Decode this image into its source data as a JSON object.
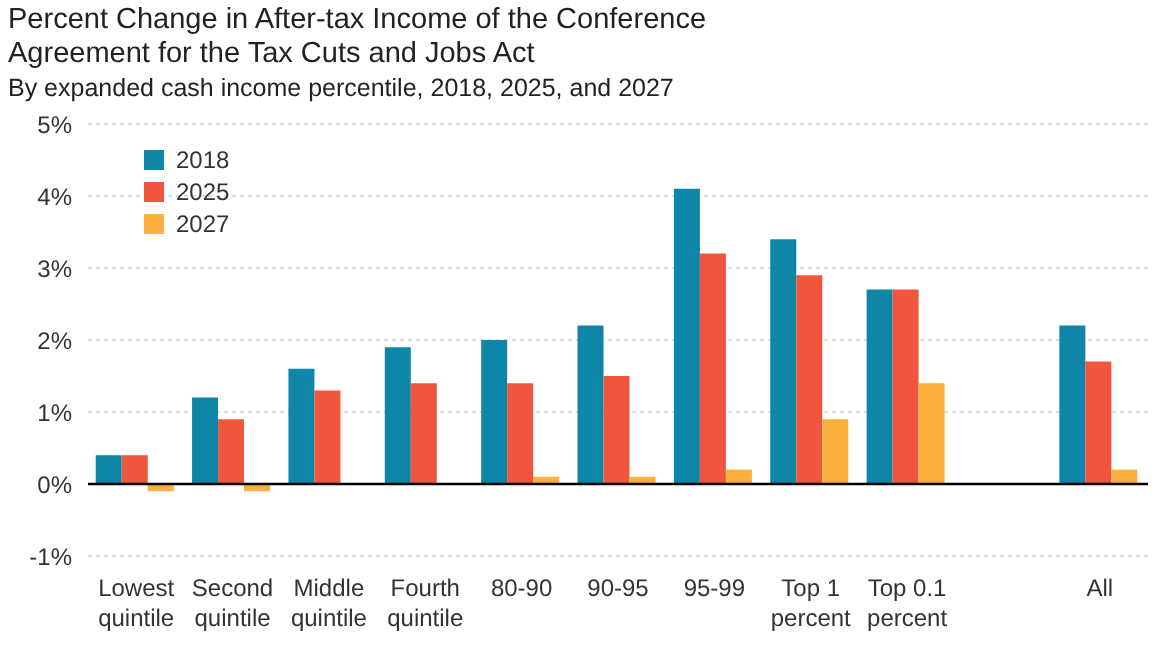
{
  "chart_data": {
    "type": "bar",
    "title": "Percent Change in After-tax Income of the Conference Agreement for the Tax Cuts and Jobs Act",
    "subtitle": "By expanded cash income percentile, 2018, 2025, and 2027",
    "categories": [
      "Lowest quintile",
      "Second quintile",
      "Middle quintile",
      "Fourth quintile",
      "80-90",
      "90-95",
      "95-99",
      "Top 1 percent",
      "Top 0.1 percent",
      null,
      "All"
    ],
    "series": [
      {
        "name": "2018",
        "color": "#0e86a8",
        "values": [
          0.4,
          1.2,
          1.6,
          1.9,
          2.0,
          2.2,
          4.1,
          3.4,
          2.7,
          null,
          2.2
        ]
      },
      {
        "name": "2025",
        "color": "#ef563d",
        "values": [
          0.4,
          0.9,
          1.3,
          1.4,
          1.4,
          1.5,
          3.2,
          2.9,
          2.7,
          null,
          1.7
        ]
      },
      {
        "name": "2027",
        "color": "#fbb040",
        "values": [
          -0.1,
          -0.1,
          0,
          0,
          0.1,
          0.1,
          0.2,
          0.9,
          1.4,
          null,
          0.2
        ]
      }
    ],
    "ylim": [
      -1,
      5
    ],
    "yticks": [
      {
        "value": -1,
        "label": "-1%"
      },
      {
        "value": 0,
        "label": "0%"
      },
      {
        "value": 1,
        "label": "1%"
      },
      {
        "value": 2,
        "label": "2%"
      },
      {
        "value": 3,
        "label": "3%"
      },
      {
        "value": 4,
        "label": "4%"
      },
      {
        "value": 5,
        "label": "5%"
      }
    ],
    "grid": "y",
    "legend": "top left"
  }
}
